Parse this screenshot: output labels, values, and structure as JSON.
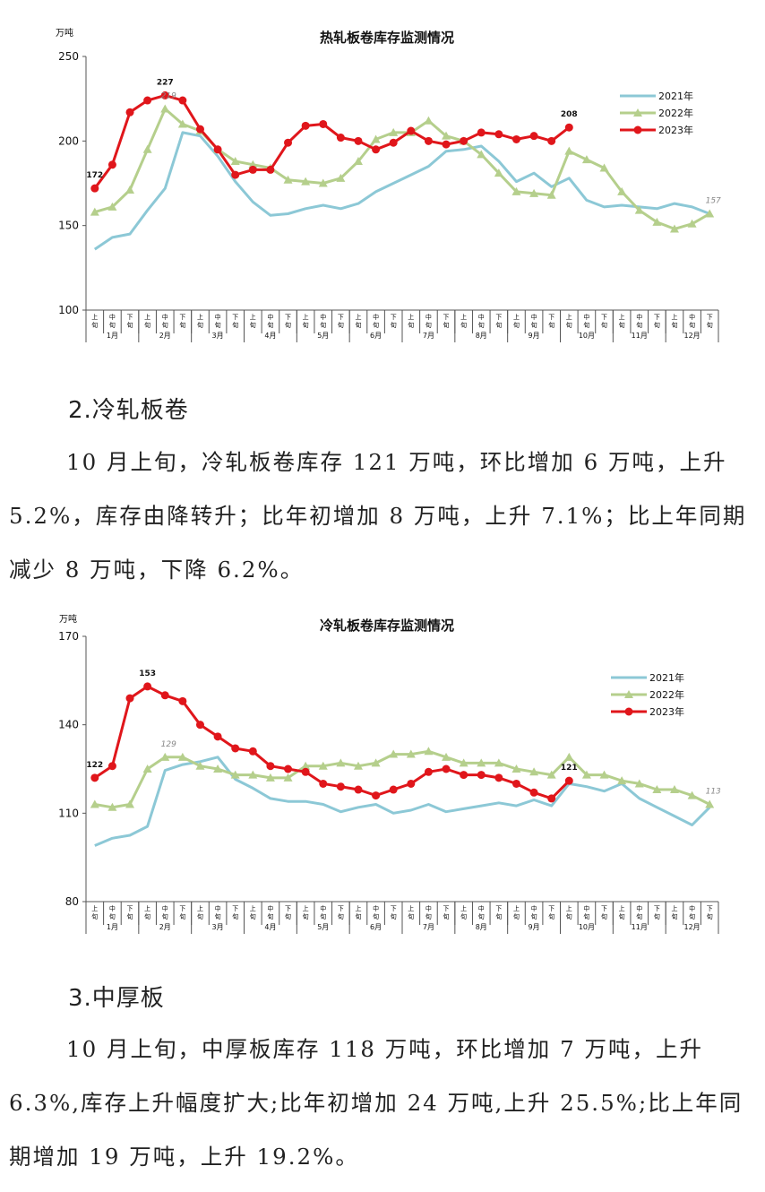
{
  "chart_data": [
    {
      "type": "line",
      "title": "热轧板卷库存监测情况",
      "unit_label": "万吨",
      "ylim": [
        100,
        250
      ],
      "yticks": [
        100,
        150,
        200,
        250
      ],
      "period_labels": [
        "上旬",
        "中旬",
        "下旬"
      ],
      "months": [
        "1月",
        "2月",
        "3月",
        "4月",
        "5月",
        "6月",
        "7月",
        "8月",
        "9月",
        "10月",
        "11月",
        "12月"
      ],
      "legend_position": "right",
      "series": [
        {
          "name": "2021年",
          "color": "#8cc8d6",
          "marker": "none",
          "values": [
            136,
            143,
            145,
            159,
            172,
            205,
            203,
            191,
            176,
            164,
            156,
            157,
            160,
            162,
            160,
            163,
            170,
            175,
            180,
            185,
            194,
            195,
            197,
            188,
            176,
            181,
            173,
            178,
            165,
            161,
            162,
            161,
            160,
            163,
            161,
            157
          ]
        },
        {
          "name": "2022年",
          "color": "#b5cf8c",
          "marker": "triangle",
          "values": [
            158,
            161,
            171,
            195,
            219,
            210,
            206,
            195,
            188,
            186,
            184,
            177,
            176,
            175,
            178,
            188,
            201,
            205,
            205,
            212,
            203,
            200,
            192,
            181,
            170,
            169,
            168,
            194,
            189,
            184,
            170,
            159,
            152,
            148,
            151,
            157
          ]
        },
        {
          "name": "2023年",
          "color": "#e0161b",
          "marker": "circle",
          "values": [
            172,
            186,
            217,
            224,
            227,
            224,
            207,
            195,
            180,
            183,
            183,
            199,
            209,
            210,
            202,
            200,
            195,
            199,
            206,
            200,
            198,
            200,
            205,
            204,
            201,
            203,
            200,
            208
          ]
        }
      ],
      "data_labels": [
        {
          "series": 2,
          "index": 0,
          "text": "172"
        },
        {
          "series": 2,
          "index": 4,
          "text": "227"
        },
        {
          "series": 1,
          "index": 4,
          "text": "219"
        },
        {
          "series": 2,
          "index": 27,
          "text": "208"
        },
        {
          "series": 1,
          "index": 35,
          "text": "157"
        }
      ]
    },
    {
      "type": "line",
      "title": "冷轧板卷库存监测情况",
      "unit_label": "万吨",
      "ylim": [
        80,
        170
      ],
      "yticks": [
        80,
        110,
        140,
        170
      ],
      "period_labels": [
        "上旬",
        "中旬",
        "下旬"
      ],
      "months": [
        "1月",
        "2月",
        "3月",
        "4月",
        "5月",
        "6月",
        "7月",
        "8月",
        "9月",
        "10月",
        "11月",
        "12月"
      ],
      "legend_position": "right",
      "series": [
        {
          "name": "2021年",
          "color": "#8cc8d6",
          "marker": "none",
          "values": [
            99,
            101.5,
            102.5,
            105.5,
            124.5,
            126.5,
            127.5,
            129,
            121.5,
            118.5,
            115,
            114,
            114,
            113,
            110.5,
            112,
            113,
            110,
            111,
            113,
            110.5,
            111.5,
            112.5,
            113.5,
            112.5,
            114.5,
            112.5,
            120,
            119,
            117.5,
            120,
            115,
            112,
            109,
            106,
            112
          ]
        },
        {
          "name": "2022年",
          "color": "#b5cf8c",
          "marker": "triangle",
          "values": [
            113,
            112,
            113,
            125,
            129,
            129,
            126,
            125,
            123,
            123,
            122,
            122,
            126,
            126,
            127,
            126,
            127,
            130,
            130,
            131,
            129,
            127,
            127,
            127,
            125,
            124,
            123,
            129,
            123,
            123,
            121,
            120,
            118,
            118,
            116,
            113
          ]
        },
        {
          "name": "2023年",
          "color": "#e0161b",
          "marker": "circle",
          "values": [
            122,
            126,
            149,
            153,
            150,
            148,
            140,
            136,
            132,
            131,
            126,
            125,
            124,
            120,
            119,
            118,
            116,
            118,
            120,
            124,
            125,
            123,
            123,
            122,
            120,
            117,
            115,
            121
          ]
        }
      ],
      "data_labels": [
        {
          "series": 2,
          "index": 0,
          "text": "122"
        },
        {
          "series": 2,
          "index": 3,
          "text": "153"
        },
        {
          "series": 1,
          "index": 4,
          "text": "129"
        },
        {
          "series": 2,
          "index": 27,
          "text": "121"
        },
        {
          "series": 1,
          "index": 35,
          "text": "113"
        }
      ]
    }
  ],
  "sections": [
    {
      "heading": "2.冷轧板卷",
      "paragraph": "10 月上旬，冷轧板卷库存 121 万吨，环比增加 6 万吨，上升 5.2%，库存由降转升；比年初增加 8 万吨，上升 7.1%；比上年同期减少 8 万吨，下降 6.2%。"
    },
    {
      "heading": "3.中厚板",
      "paragraph": "10 月上旬，中厚板库存 118 万吨，环比增加 7 万吨，上升 6.3%,库存上升幅度扩大;比年初增加 24 万吨,上升 25.5%;比上年同期增加 19 万吨，上升 19.2%。"
    }
  ]
}
